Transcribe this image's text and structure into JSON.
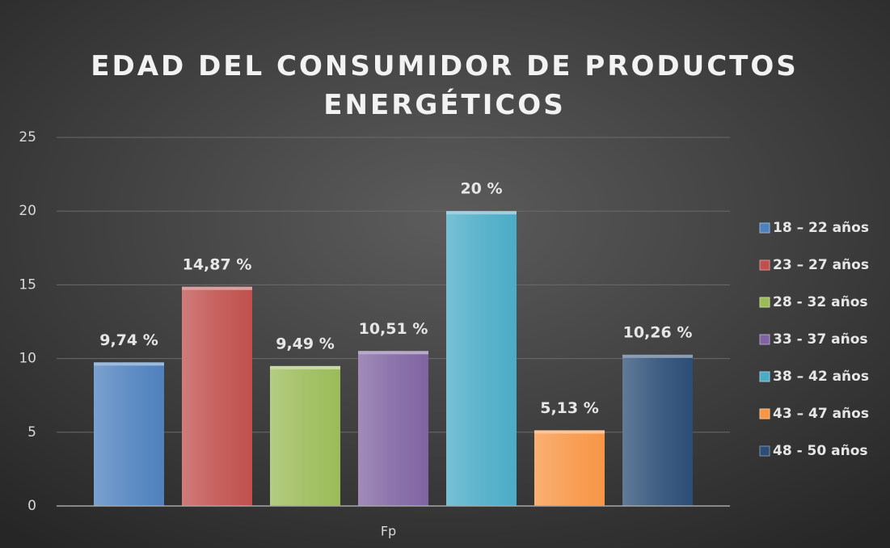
{
  "chart_data": {
    "type": "bar",
    "title": "EDAD DEL CONSUMIDOR DE PRODUCTOS ENERGÉTICOS",
    "categories": [
      "Fp"
    ],
    "series": [
      {
        "name": "18 – 22 años",
        "color": "#4f81bd",
        "values": [
          9.74
        ],
        "value_labels": [
          "9,74 %"
        ]
      },
      {
        "name": "23 – 27 años",
        "color": "#c0504d",
        "values": [
          14.87
        ],
        "value_labels": [
          "14,87 %"
        ]
      },
      {
        "name": "28 - 32 años",
        "color": "#9bbb59",
        "values": [
          9.49
        ],
        "value_labels": [
          "9,49 %"
        ]
      },
      {
        "name": "33 - 37 años",
        "color": "#8064a2",
        "values": [
          10.51
        ],
        "value_labels": [
          "10,51 %"
        ]
      },
      {
        "name": "38 – 42 años",
        "color": "#4bacc6",
        "values": [
          20
        ],
        "value_labels": [
          "20 %"
        ]
      },
      {
        "name": "43 – 47 años",
        "color": "#f79646",
        "values": [
          5.13
        ],
        "value_labels": [
          "5,13 %"
        ]
      },
      {
        "name": "48 - 50 años",
        "color": "#2c4d75",
        "values": [
          10.26
        ],
        "value_labels": [
          "10,26 %"
        ]
      }
    ],
    "ylim": [
      0,
      25
    ],
    "yticks": [
      0,
      5,
      10,
      15,
      20,
      25
    ],
    "grid": true,
    "legend": "right"
  }
}
